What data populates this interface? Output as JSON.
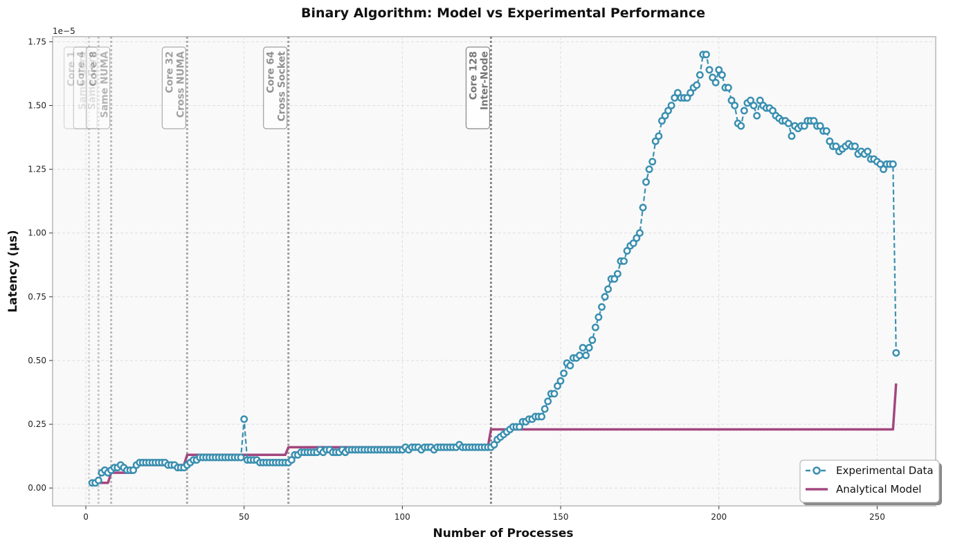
{
  "chart_data": {
    "type": "line",
    "title": "Binary Algorithm: Model vs Experimental Performance",
    "xlabel": "Number of Processes",
    "ylabel": "Latency (µs)",
    "y_offset_text": "1e−5",
    "y_multiplier": 1e-05,
    "xlim": [
      -10.5,
      268.5
    ],
    "ylim": [
      -0.07,
      1.77
    ],
    "x_ticks": [
      0,
      50,
      100,
      150,
      200,
      250
    ],
    "y_ticks": [
      0.0,
      0.25,
      0.5,
      0.75,
      1.0,
      1.25,
      1.5,
      1.75
    ],
    "y_tick_labels": [
      "0.00",
      "0.25",
      "0.50",
      "0.75",
      "1.00",
      "1.25",
      "1.50",
      "1.75"
    ],
    "grid": true,
    "legend_position": "bottom-right",
    "colors": {
      "experimental": "#3a8fb0",
      "model": "#a2477f",
      "background": "#f9f9f9"
    },
    "annotations": [
      {
        "x": 1,
        "lines": [
          "Core 1",
          "Same Core"
        ],
        "opacity": 0.12
      },
      {
        "x": 4,
        "lines": [
          "Core 4",
          "Same Core"
        ],
        "opacity": 0.22
      },
      {
        "x": 8,
        "lines": [
          "Core 8",
          "Same NUMA"
        ],
        "opacity": 0.32
      },
      {
        "x": 32,
        "lines": [
          "Core 32",
          "Cross NUMA"
        ],
        "opacity": 0.45
      },
      {
        "x": 64,
        "lines": [
          "Core 64",
          "Cross Socket"
        ],
        "opacity": 0.55
      },
      {
        "x": 128,
        "lines": [
          "Core 128",
          "Inter-Node"
        ],
        "opacity": 0.72
      }
    ],
    "series": [
      {
        "name": "Experimental Data",
        "style": "dashed-circle-markers",
        "points": [
          [
            2,
            0.02
          ],
          [
            3,
            0.02
          ],
          [
            4,
            0.03
          ],
          [
            5,
            0.06
          ],
          [
            6,
            0.07
          ],
          [
            7,
            0.06
          ],
          [
            8,
            0.07
          ],
          [
            9,
            0.08
          ],
          [
            10,
            0.08
          ],
          [
            11,
            0.09
          ],
          [
            12,
            0.08
          ],
          [
            13,
            0.07
          ],
          [
            14,
            0.07
          ],
          [
            15,
            0.07
          ],
          [
            16,
            0.09
          ],
          [
            17,
            0.1
          ],
          [
            18,
            0.1
          ],
          [
            19,
            0.1
          ],
          [
            20,
            0.1
          ],
          [
            21,
            0.1
          ],
          [
            22,
            0.1
          ],
          [
            23,
            0.1
          ],
          [
            24,
            0.1
          ],
          [
            25,
            0.1
          ],
          [
            26,
            0.09
          ],
          [
            27,
            0.09
          ],
          [
            28,
            0.09
          ],
          [
            29,
            0.08
          ],
          [
            30,
            0.08
          ],
          [
            31,
            0.08
          ],
          [
            32,
            0.09
          ],
          [
            33,
            0.1
          ],
          [
            34,
            0.11
          ],
          [
            35,
            0.11
          ],
          [
            36,
            0.12
          ],
          [
            37,
            0.12
          ],
          [
            38,
            0.12
          ],
          [
            39,
            0.12
          ],
          [
            40,
            0.12
          ],
          [
            41,
            0.12
          ],
          [
            42,
            0.12
          ],
          [
            43,
            0.12
          ],
          [
            44,
            0.12
          ],
          [
            45,
            0.12
          ],
          [
            46,
            0.12
          ],
          [
            47,
            0.12
          ],
          [
            48,
            0.12
          ],
          [
            49,
            0.12
          ],
          [
            50,
            0.27
          ],
          [
            51,
            0.11
          ],
          [
            52,
            0.11
          ],
          [
            53,
            0.11
          ],
          [
            54,
            0.11
          ],
          [
            55,
            0.1
          ],
          [
            56,
            0.1
          ],
          [
            57,
            0.1
          ],
          [
            58,
            0.1
          ],
          [
            59,
            0.1
          ],
          [
            60,
            0.1
          ],
          [
            61,
            0.1
          ],
          [
            62,
            0.1
          ],
          [
            63,
            0.1
          ],
          [
            64,
            0.1
          ],
          [
            65,
            0.11
          ],
          [
            66,
            0.13
          ],
          [
            67,
            0.13
          ],
          [
            68,
            0.14
          ],
          [
            69,
            0.14
          ],
          [
            70,
            0.14
          ],
          [
            71,
            0.14
          ],
          [
            72,
            0.14
          ],
          [
            73,
            0.14
          ],
          [
            74,
            0.15
          ],
          [
            75,
            0.14
          ],
          [
            76,
            0.15
          ],
          [
            77,
            0.15
          ],
          [
            78,
            0.14
          ],
          [
            79,
            0.14
          ],
          [
            80,
            0.14
          ],
          [
            81,
            0.15
          ],
          [
            82,
            0.14
          ],
          [
            83,
            0.15
          ],
          [
            84,
            0.15
          ],
          [
            85,
            0.15
          ],
          [
            86,
            0.15
          ],
          [
            87,
            0.15
          ],
          [
            88,
            0.15
          ],
          [
            89,
            0.15
          ],
          [
            90,
            0.15
          ],
          [
            91,
            0.15
          ],
          [
            92,
            0.15
          ],
          [
            93,
            0.15
          ],
          [
            94,
            0.15
          ],
          [
            95,
            0.15
          ],
          [
            96,
            0.15
          ],
          [
            97,
            0.15
          ],
          [
            98,
            0.15
          ],
          [
            99,
            0.15
          ],
          [
            100,
            0.15
          ],
          [
            101,
            0.16
          ],
          [
            102,
            0.15
          ],
          [
            103,
            0.16
          ],
          [
            104,
            0.16
          ],
          [
            105,
            0.16
          ],
          [
            106,
            0.15
          ],
          [
            107,
            0.16
          ],
          [
            108,
            0.16
          ],
          [
            109,
            0.16
          ],
          [
            110,
            0.15
          ],
          [
            111,
            0.16
          ],
          [
            112,
            0.16
          ],
          [
            113,
            0.16
          ],
          [
            114,
            0.16
          ],
          [
            115,
            0.16
          ],
          [
            116,
            0.16
          ],
          [
            117,
            0.16
          ],
          [
            118,
            0.17
          ],
          [
            119,
            0.16
          ],
          [
            120,
            0.16
          ],
          [
            121,
            0.16
          ],
          [
            122,
            0.16
          ],
          [
            123,
            0.16
          ],
          [
            124,
            0.16
          ],
          [
            125,
            0.16
          ],
          [
            126,
            0.16
          ],
          [
            127,
            0.16
          ],
          [
            128,
            0.16
          ],
          [
            129,
            0.17
          ],
          [
            130,
            0.19
          ],
          [
            131,
            0.2
          ],
          [
            132,
            0.21
          ],
          [
            133,
            0.22
          ],
          [
            134,
            0.23
          ],
          [
            135,
            0.24
          ],
          [
            136,
            0.24
          ],
          [
            137,
            0.24
          ],
          [
            138,
            0.26
          ],
          [
            139,
            0.26
          ],
          [
            140,
            0.27
          ],
          [
            141,
            0.27
          ],
          [
            142,
            0.28
          ],
          [
            143,
            0.28
          ],
          [
            144,
            0.28
          ],
          [
            145,
            0.31
          ],
          [
            146,
            0.34
          ],
          [
            147,
            0.37
          ],
          [
            148,
            0.37
          ],
          [
            149,
            0.4
          ],
          [
            150,
            0.42
          ],
          [
            151,
            0.45
          ],
          [
            152,
            0.49
          ],
          [
            153,
            0.48
          ],
          [
            154,
            0.51
          ],
          [
            155,
            0.51
          ],
          [
            156,
            0.52
          ],
          [
            157,
            0.55
          ],
          [
            158,
            0.52
          ],
          [
            159,
            0.55
          ],
          [
            160,
            0.58
          ],
          [
            161,
            0.63
          ],
          [
            162,
            0.67
          ],
          [
            163,
            0.71
          ],
          [
            164,
            0.75
          ],
          [
            165,
            0.78
          ],
          [
            166,
            0.82
          ],
          [
            167,
            0.82
          ],
          [
            168,
            0.84
          ],
          [
            169,
            0.89
          ],
          [
            170,
            0.89
          ],
          [
            171,
            0.93
          ],
          [
            172,
            0.95
          ],
          [
            173,
            0.96
          ],
          [
            174,
            0.98
          ],
          [
            175,
            1.0
          ],
          [
            176,
            1.1
          ],
          [
            177,
            1.2
          ],
          [
            178,
            1.25
          ],
          [
            179,
            1.28
          ],
          [
            180,
            1.36
          ],
          [
            181,
            1.38
          ],
          [
            182,
            1.44
          ],
          [
            183,
            1.46
          ],
          [
            184,
            1.48
          ],
          [
            185,
            1.5
          ],
          [
            186,
            1.53
          ],
          [
            187,
            1.55
          ],
          [
            188,
            1.53
          ],
          [
            189,
            1.53
          ],
          [
            190,
            1.53
          ],
          [
            191,
            1.55
          ],
          [
            192,
            1.57
          ],
          [
            193,
            1.58
          ],
          [
            194,
            1.62
          ],
          [
            195,
            1.7
          ],
          [
            196,
            1.7
          ],
          [
            197,
            1.64
          ],
          [
            198,
            1.61
          ],
          [
            199,
            1.59
          ],
          [
            200,
            1.64
          ],
          [
            201,
            1.62
          ],
          [
            202,
            1.57
          ],
          [
            203,
            1.57
          ],
          [
            204,
            1.52
          ],
          [
            205,
            1.5
          ],
          [
            206,
            1.43
          ],
          [
            207,
            1.42
          ],
          [
            208,
            1.48
          ],
          [
            209,
            1.51
          ],
          [
            210,
            1.52
          ],
          [
            211,
            1.5
          ],
          [
            212,
            1.46
          ],
          [
            213,
            1.52
          ],
          [
            214,
            1.5
          ],
          [
            215,
            1.49
          ],
          [
            216,
            1.49
          ],
          [
            217,
            1.48
          ],
          [
            218,
            1.46
          ],
          [
            219,
            1.45
          ],
          [
            220,
            1.44
          ],
          [
            221,
            1.44
          ],
          [
            222,
            1.43
          ],
          [
            223,
            1.38
          ],
          [
            224,
            1.42
          ],
          [
            225,
            1.41
          ],
          [
            226,
            1.42
          ],
          [
            227,
            1.42
          ],
          [
            228,
            1.44
          ],
          [
            229,
            1.44
          ],
          [
            230,
            1.44
          ],
          [
            231,
            1.42
          ],
          [
            232,
            1.42
          ],
          [
            233,
            1.4
          ],
          [
            234,
            1.4
          ],
          [
            235,
            1.36
          ],
          [
            236,
            1.34
          ],
          [
            237,
            1.34
          ],
          [
            238,
            1.32
          ],
          [
            239,
            1.33
          ],
          [
            240,
            1.34
          ],
          [
            241,
            1.35
          ],
          [
            242,
            1.34
          ],
          [
            243,
            1.34
          ],
          [
            244,
            1.31
          ],
          [
            245,
            1.32
          ],
          [
            246,
            1.31
          ],
          [
            247,
            1.32
          ],
          [
            248,
            1.29
          ],
          [
            249,
            1.29
          ],
          [
            250,
            1.28
          ],
          [
            251,
            1.27
          ],
          [
            252,
            1.25
          ],
          [
            253,
            1.27
          ],
          [
            254,
            1.27
          ],
          [
            255,
            1.27
          ],
          [
            256,
            0.53
          ]
        ]
      },
      {
        "name": "Analytical Model",
        "style": "solid",
        "points": [
          [
            2,
            0.01
          ],
          [
            3,
            0.02
          ],
          [
            4,
            0.02
          ],
          [
            7,
            0.02
          ],
          [
            8,
            0.06
          ],
          [
            15,
            0.06
          ],
          [
            16,
            0.09
          ],
          [
            31,
            0.09
          ],
          [
            32,
            0.13
          ],
          [
            63,
            0.13
          ],
          [
            64,
            0.16
          ],
          [
            127,
            0.16
          ],
          [
            128,
            0.23
          ],
          [
            255,
            0.23
          ],
          [
            256,
            0.41
          ]
        ]
      }
    ]
  }
}
